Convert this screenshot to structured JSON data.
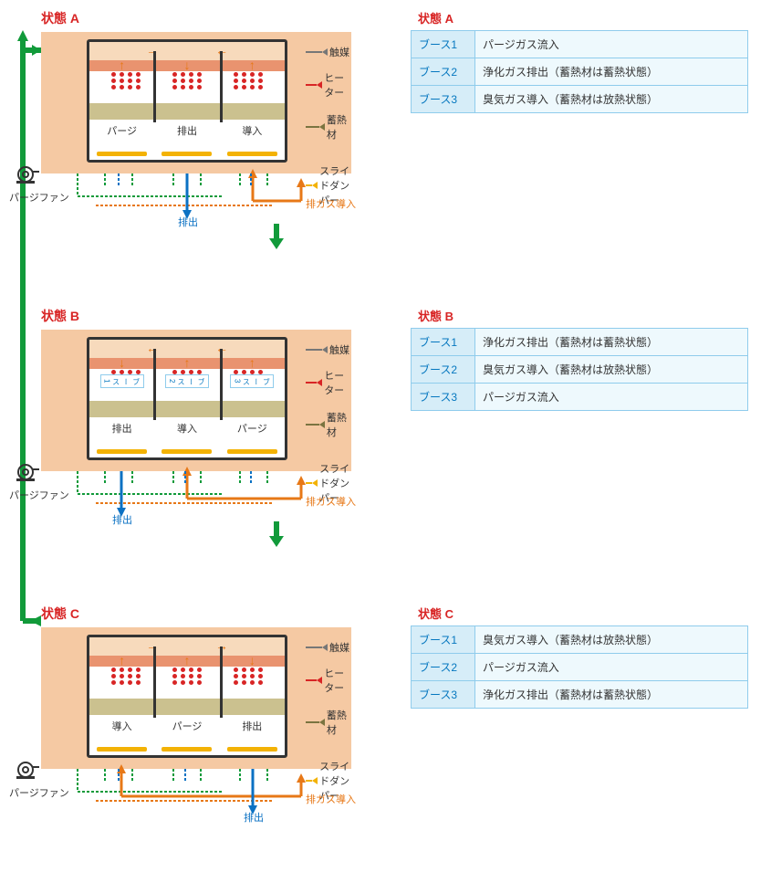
{
  "colors": {
    "peach": "#f5c9a3",
    "catalyst": "#e9936f",
    "heater_dots": "#d82525",
    "heat_storage": "#cbc18f",
    "damper": "#f3b204",
    "green": "#119a3a",
    "orange": "#e77817",
    "blue": "#0b71c3",
    "cyan_header": "#d6edf8",
    "cyan_row": "#eef9fd",
    "cyan_border": "#8fccec",
    "red_title": "#d82525"
  },
  "legend": {
    "catalyst": "触媒",
    "heater": "ヒーター",
    "heat_storage": "蓄熱材",
    "slide_damper": "スライドダンパー"
  },
  "common": {
    "purge_fan": "パージファン",
    "exhaust_gas_in": "排ガス導入",
    "discharge": "排出"
  },
  "states": [
    {
      "id": "A",
      "title_left": "状態 A",
      "title_right": "状態 A",
      "booths_bottom": [
        "パージ",
        "排出",
        "導入"
      ],
      "table": [
        {
          "h": "ブース1",
          "v": "パージガス流入"
        },
        {
          "h": "ブース2",
          "v": "浄化ガス排出（蓄熱材は蓄熱状態）"
        },
        {
          "h": "ブース3",
          "v": "臭気ガス導入（蓄熱材は放熱状態）"
        }
      ],
      "top_arrows": [
        "right",
        "left"
      ],
      "cat_arrows": [
        "up",
        "down",
        "up"
      ],
      "show_booth_inner": false
    },
    {
      "id": "B",
      "title_left": "状態 B",
      "title_right": "状態 B",
      "booths_bottom": [
        "排出",
        "導入",
        "パージ"
      ],
      "table": [
        {
          "h": "ブース1",
          "v": "浄化ガス排出（蓄熱材は蓄熱状態）"
        },
        {
          "h": "ブース2",
          "v": "臭気ガス導入（蓄熱材は放熱状態）"
        },
        {
          "h": "ブース3",
          "v": "パージガス流入"
        }
      ],
      "top_arrows": [
        "left",
        "left"
      ],
      "cat_arrows": [
        "down",
        "up",
        "up"
      ],
      "show_booth_inner": true,
      "booth_inner": [
        "ブース1",
        "ブース2",
        "ブース3"
      ]
    },
    {
      "id": "C",
      "title_left": "状態 C",
      "title_right": "状態 C",
      "booths_bottom": [
        "導入",
        "パージ",
        "排出"
      ],
      "table": [
        {
          "h": "ブース1",
          "v": "臭気ガス導入（蓄熱材は放熱状態）"
        },
        {
          "h": "ブース2",
          "v": "パージガス流入"
        },
        {
          "h": "ブース3",
          "v": "浄化ガス排出（蓄熱材は蓄熱状態）"
        }
      ],
      "top_arrows": [
        "right",
        "right"
      ],
      "cat_arrows": [
        "up",
        "up",
        "down"
      ],
      "show_booth_inner": false
    }
  ]
}
